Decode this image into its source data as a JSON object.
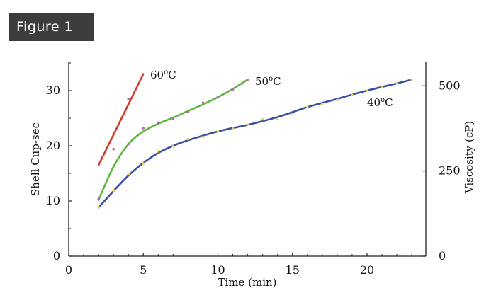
{
  "figure_label": "Figure 1",
  "chart_data": {
    "type": "line",
    "title": "",
    "xlabel": "Time (min)",
    "ylabel": "Shell Cup-sec",
    "y2label": "Viscosity (cP)",
    "xlim": [
      0,
      24
    ],
    "ylim": [
      0,
      35
    ],
    "x_ticks": [
      "0",
      "5",
      "10",
      "15",
      "20"
    ],
    "y_ticks": [
      "0",
      "10",
      "20",
      "30"
    ],
    "y2_ticks": [
      "0",
      "250",
      "500"
    ],
    "y2_values": [
      0,
      250,
      500
    ],
    "y2_per_y": 16.2,
    "grid": false,
    "series": [
      {
        "name": "60°C",
        "label_main": "60",
        "label_sup": "o",
        "label_unit": "C",
        "color": "#d23a2a",
        "x": [
          2,
          3,
          4,
          5
        ],
        "y": [
          16.5,
          22.0,
          27.5,
          33.0
        ],
        "points_x": [
          4
        ],
        "points_y": [
          28.5
        ],
        "point_color": "#c060c0"
      },
      {
        "name": "50°C",
        "label_main": "50",
        "label_sup": "o",
        "label_unit": "C",
        "color": "#5cb83a",
        "x": [
          2,
          3,
          4,
          5,
          6,
          7,
          8,
          9,
          10,
          11,
          12
        ],
        "y": [
          10.2,
          16.2,
          20.3,
          22.6,
          24.0,
          25.1,
          26.3,
          27.5,
          28.8,
          30.3,
          32.0
        ],
        "points_x": [
          2,
          3,
          4,
          5,
          6,
          7,
          8,
          9,
          10,
          11,
          12
        ],
        "points_y": [
          10.3,
          19.4,
          20.3,
          23.2,
          24.2,
          24.9,
          26.1,
          27.8,
          28.8,
          30.2,
          31.9
        ],
        "point_color": "#c060c0"
      },
      {
        "name": "40°C",
        "label_main": "40",
        "label_sup": "o",
        "label_unit": "C",
        "color": "#3a4fa0",
        "x": [
          2,
          3,
          4,
          5,
          6,
          7,
          8,
          10,
          12,
          14,
          16,
          18,
          20,
          22,
          23
        ],
        "y": [
          8.8,
          11.8,
          14.6,
          16.9,
          18.7,
          20.0,
          21.0,
          22.6,
          23.8,
          25.2,
          27.0,
          28.5,
          30.0,
          31.3,
          32.0
        ],
        "points_x": [
          2,
          3,
          4,
          5,
          6,
          7,
          8,
          9,
          10,
          11,
          12,
          13,
          14,
          15,
          16,
          17,
          18,
          19,
          20,
          21,
          22,
          23
        ],
        "points_y": [
          8.9,
          11.9,
          14.9,
          16.8,
          19.0,
          19.9,
          21.2,
          21.6,
          22.7,
          23.1,
          23.8,
          24.8,
          24.8,
          25.8,
          27.0,
          27.6,
          28.3,
          29.2,
          30.0,
          30.7,
          31.4,
          32.0
        ],
        "point_color": "#e8d84a"
      }
    ]
  }
}
